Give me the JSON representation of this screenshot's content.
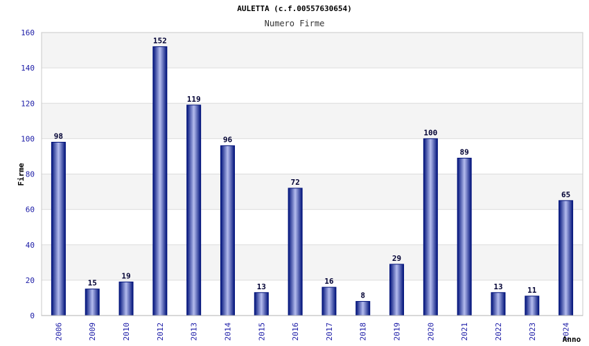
{
  "chart_data": {
    "type": "bar",
    "title": "AULETTA (c.f.00557630654)",
    "subtitle": "Numero Firme",
    "xlabel": "Anno",
    "ylabel": "Firme",
    "categories": [
      "2006",
      "2009",
      "2010",
      "2012",
      "2013",
      "2014",
      "2015",
      "2016",
      "2017",
      "2018",
      "2019",
      "2020",
      "2021",
      "2022",
      "2023",
      "2024"
    ],
    "values": [
      98,
      15,
      19,
      152,
      119,
      96,
      13,
      72,
      16,
      8,
      29,
      100,
      89,
      13,
      11,
      65
    ],
    "ylim": [
      0,
      160
    ],
    "yticks": [
      0,
      20,
      40,
      60,
      80,
      100,
      120,
      140,
      160
    ],
    "grid": true,
    "legend": "none",
    "colors": {
      "bar_dark": "#00127a",
      "bar_light": "#b4bcee",
      "band": "#f4f4f4",
      "gridline": "#dcdcdc",
      "tick_text": "#1a1aa6"
    }
  }
}
